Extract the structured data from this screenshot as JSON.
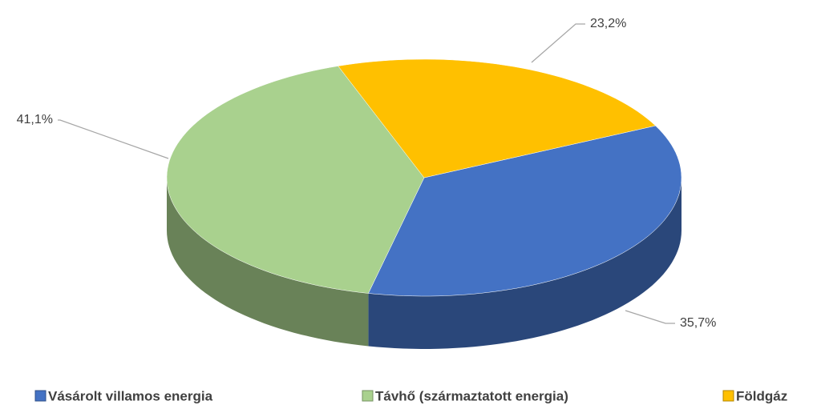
{
  "chart_data": {
    "type": "pie",
    "categories": [
      "Vásárolt villamos energia",
      "Távhő (származtatott energia)",
      "Földgáz"
    ],
    "values": [
      35.7,
      41.1,
      23.2
    ],
    "value_labels": [
      "35,7%",
      "41,1%",
      "23,2%"
    ],
    "colors": [
      "#4472c4",
      "#a9d18e",
      "#ffc000"
    ],
    "legend": "bottom"
  }
}
